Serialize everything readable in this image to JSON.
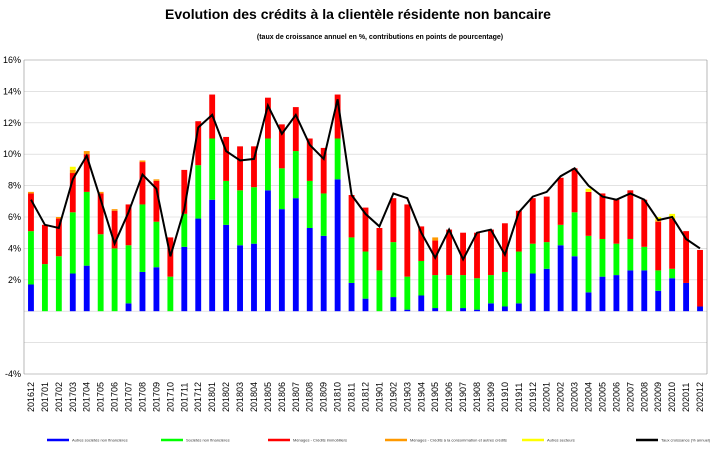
{
  "chart_data": {
    "type": "bar",
    "title": "Evolution  des crédits à la clientèle résidente non bancaire",
    "subtitle": "(taux de croissance annuel en %, contributions en points de pourcentage)",
    "ylim": [
      -4,
      16
    ],
    "yticks": [
      "16%",
      "14%",
      "12%",
      "10%",
      "8%",
      "6%",
      "4%",
      "2%",
      "-4%"
    ],
    "grid": true,
    "legend_position": "bottom",
    "categories": [
      "201612",
      "201701",
      "201702",
      "201703",
      "201704",
      "201705",
      "201706",
      "201707",
      "201708",
      "201709",
      "201710",
      "201711",
      "201712",
      "201801",
      "201802",
      "201803",
      "201804",
      "201805",
      "201806",
      "201807",
      "201808",
      "201809",
      "201810",
      "201811",
      "201812",
      "201901",
      "201902",
      "201903",
      "201904",
      "201905",
      "201906",
      "201907",
      "201908",
      "201909",
      "201910",
      "201911",
      "201912",
      "202001",
      "202002",
      "202003",
      "202004",
      "202005",
      "202006",
      "202007",
      "202008",
      "202009",
      "202010",
      "202011",
      "202012"
    ],
    "series": [
      {
        "name": "Autres sociétés non financières",
        "color": "#0000ff",
        "values": [
          1.7,
          0,
          0,
          2.4,
          2.9,
          0,
          0,
          0.5,
          2.5,
          2.8,
          0,
          4.1,
          5.9,
          7.1,
          5.5,
          4.2,
          4.3,
          7.7,
          6.5,
          7.2,
          5.3,
          4.8,
          8.4,
          1.8,
          0.8,
          0,
          0.9,
          0.1,
          1.0,
          0.2,
          0,
          0.2,
          0.1,
          0.5,
          0.3,
          0.5,
          2.4,
          2.7,
          4.2,
          3.5,
          1.2,
          2.2,
          2.3,
          2.6,
          2.6,
          1.3,
          2.1,
          1.8,
          0.3
        ]
      },
      {
        "name": "Sociétés non financières",
        "color": "#00ff00",
        "values": [
          3.4,
          3.0,
          3.5,
          3.9,
          4.7,
          4.9,
          4.0,
          3.7,
          4.3,
          2.9,
          2.2,
          2.1,
          3.4,
          3.9,
          2.8,
          3.5,
          3.6,
          3.3,
          2.6,
          3.0,
          3.0,
          2.7,
          2.6,
          2.9,
          3.0,
          2.6,
          3.5,
          2.1,
          2.2,
          2.1,
          2.3,
          2.1,
          2.0,
          1.8,
          2.2,
          3.3,
          1.9,
          1.7,
          1.3,
          2.8,
          3.6,
          2.4,
          2.0,
          2.0,
          1.5,
          1.3,
          0.6,
          0,
          0
        ]
      },
      {
        "name": "Ménages - Crédits immobiliers",
        "color": "#ff0000",
        "values": [
          2.4,
          2.5,
          2.4,
          2.5,
          2.4,
          2.6,
          2.4,
          2.6,
          2.7,
          2.6,
          2.5,
          2.8,
          2.8,
          2.8,
          2.8,
          2.8,
          2.6,
          2.6,
          2.8,
          2.8,
          2.7,
          2.9,
          2.8,
          2.7,
          2.8,
          2.7,
          2.8,
          4.6,
          2.2,
          2.2,
          2.9,
          2.7,
          2.9,
          2.9,
          3.1,
          2.6,
          2.9,
          2.9,
          3.0,
          2.8,
          2.8,
          2.9,
          2.8,
          3.1,
          3.0,
          3.1,
          3.2,
          3.3,
          3.6
        ]
      },
      {
        "name": "Ménages - Crédits à la consommation et autres crédits",
        "color": "#ff9900",
        "values": [
          0.1,
          0,
          0.1,
          0.2,
          0.2,
          0.1,
          0.1,
          0,
          0.1,
          0.1,
          0,
          0,
          0,
          0,
          0,
          0,
          0,
          0,
          0,
          0,
          0,
          0,
          0,
          0,
          0,
          0,
          0,
          0,
          0,
          0.2,
          0,
          0,
          0,
          0,
          0,
          0,
          0,
          0,
          0,
          0,
          0,
          0,
          0,
          0,
          0,
          0.1,
          0,
          0,
          0
        ]
      },
      {
        "name": "Autres secteurs",
        "color": "#ffff00",
        "values": [
          0,
          0,
          0,
          0.2,
          0,
          0,
          0,
          0,
          0,
          0,
          0,
          0,
          0,
          0,
          0,
          0,
          0,
          0,
          0,
          0,
          0,
          0,
          0,
          0,
          0,
          0,
          0,
          0,
          0,
          0,
          0,
          0,
          0,
          0,
          0,
          0,
          0,
          0,
          0,
          0,
          0.2,
          0,
          0,
          0,
          0,
          0.2,
          0.3,
          0,
          0
        ]
      },
      {
        "name": "Taux croissance (% annuel)",
        "color": "#000000",
        "kind": "line",
        "values": [
          7.1,
          5.5,
          5.3,
          8.4,
          9.9,
          7.1,
          4.3,
          6.3,
          8.7,
          7.8,
          3.5,
          6.5,
          11.7,
          12.5,
          10.2,
          9.6,
          9.7,
          13.1,
          11.3,
          12.5,
          10.6,
          9.7,
          13.5,
          7.4,
          6.2,
          5.4,
          7.5,
          7.2,
          5.0,
          3.4,
          5.2,
          3.3,
          5.0,
          5.2,
          3.6,
          6.3,
          7.3,
          7.6,
          8.6,
          9.1,
          8.0,
          7.3,
          7.1,
          7.5,
          7.1,
          5.8,
          6.0,
          4.6,
          4.0
        ]
      }
    ]
  }
}
